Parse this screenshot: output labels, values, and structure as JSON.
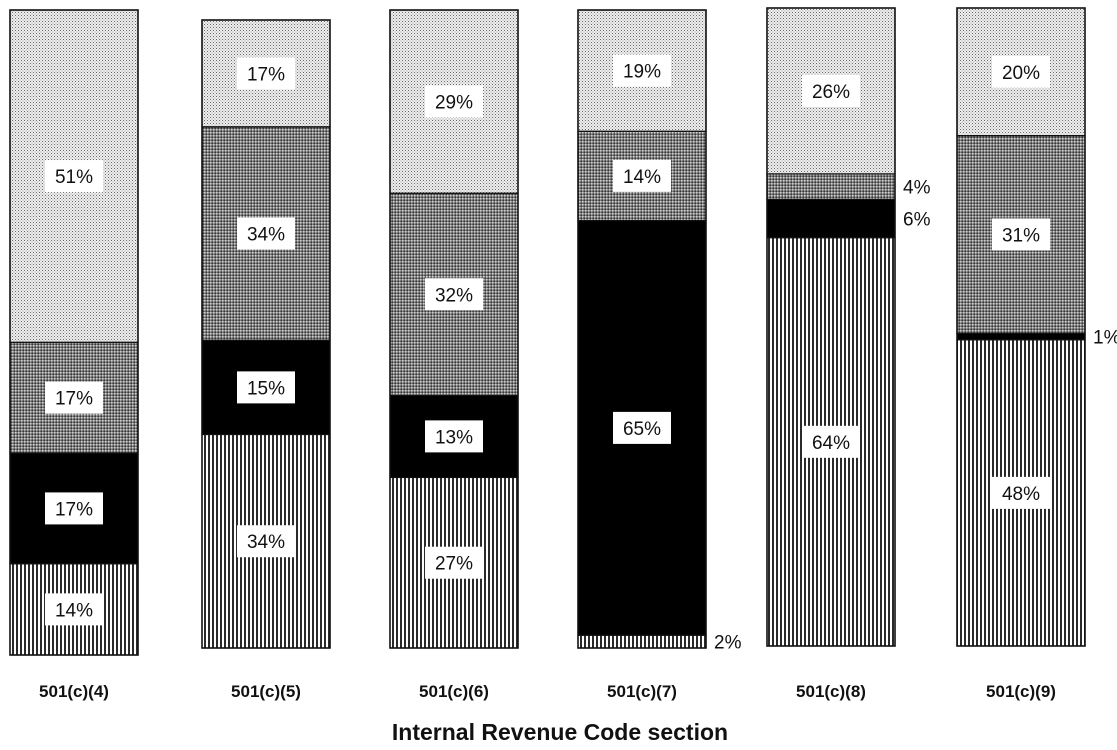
{
  "chart_data": {
    "type": "bar",
    "stacked": true,
    "normalized_percent": true,
    "xlabel": "Internal Revenue Code section",
    "categories": [
      "501(c)(4)",
      "501(c)(5)",
      "501(c)(6)",
      "501(c)(7)",
      "501(c)(8)",
      "501(c)(9)"
    ],
    "series": [
      {
        "values": [
          14,
          34,
          27,
          2,
          64,
          48
        ],
        "fill": "vertical-stripes"
      },
      {
        "values": [
          17,
          15,
          13,
          65,
          6,
          1
        ],
        "fill": "#000000"
      },
      {
        "values": [
          17,
          34,
          32,
          14,
          4,
          31
        ],
        "fill": "dark-dot-screen"
      },
      {
        "values": [
          51,
          17,
          29,
          19,
          26,
          20
        ],
        "fill": "light-dot-screen"
      }
    ],
    "labels": [
      [
        "14%",
        "17%",
        "17%",
        "51%"
      ],
      [
        "34%",
        "15%",
        "34%",
        "17%"
      ],
      [
        "27%",
        "13%",
        "32%",
        "29%"
      ],
      [
        "2%",
        "65%",
        "14%",
        "19%"
      ],
      [
        "64%",
        "6%",
        "4%",
        "26%"
      ],
      [
        "48%",
        "1%",
        "31%",
        "20%"
      ]
    ],
    "outside_labels": {
      "3": [
        0
      ],
      "4": [
        1,
        2
      ],
      "5": [
        1
      ]
    }
  }
}
